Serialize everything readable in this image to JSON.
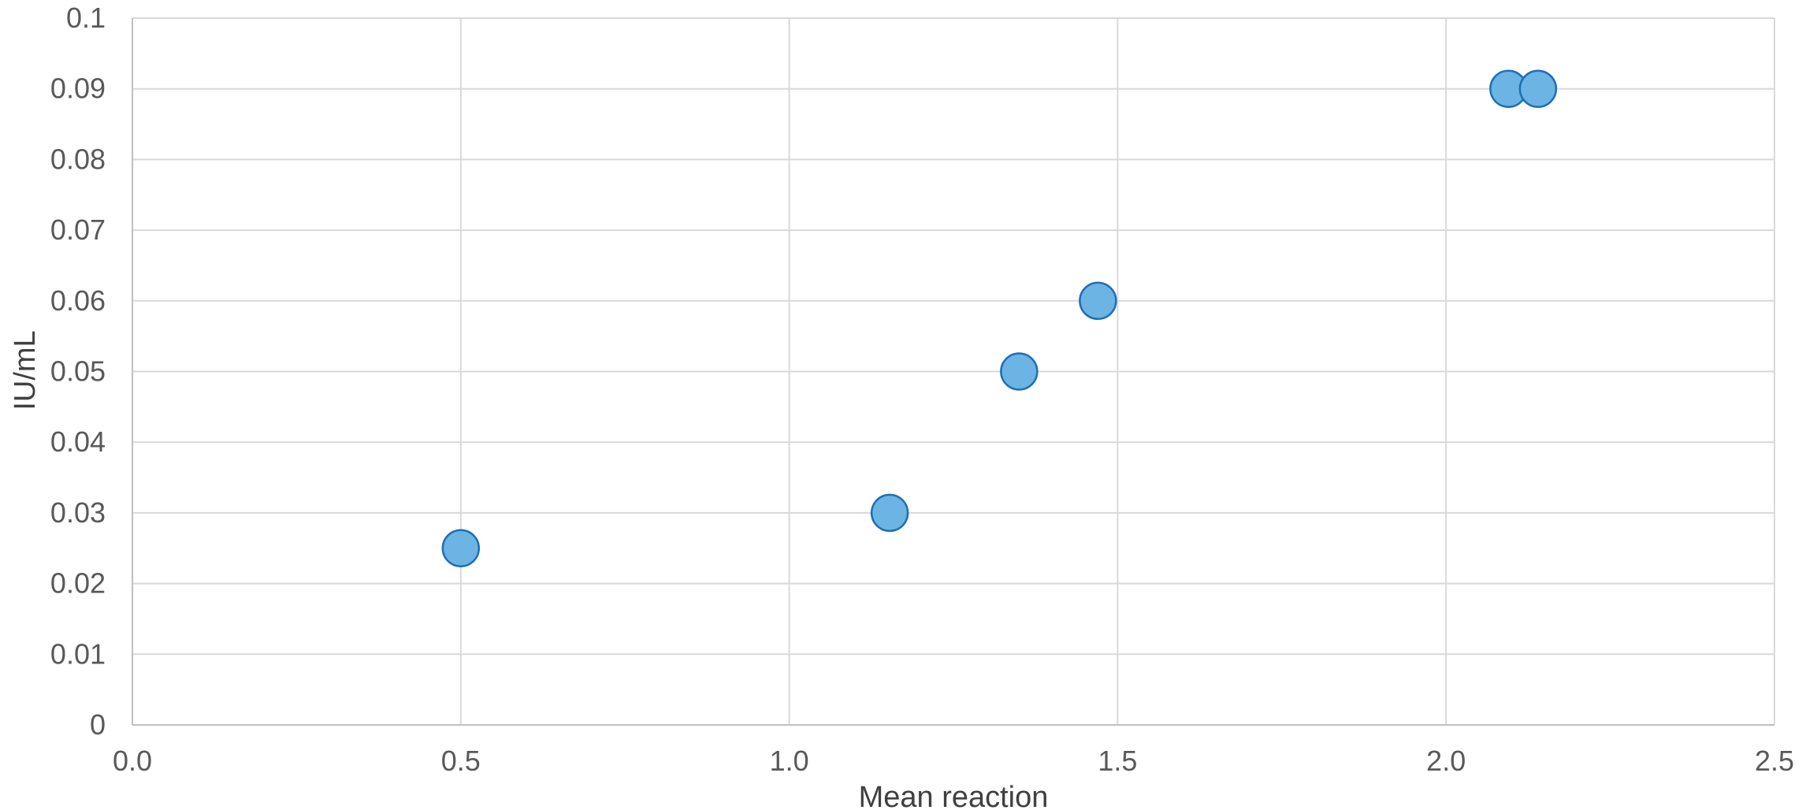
{
  "chart_data": {
    "type": "scatter",
    "title": "",
    "xlabel": "Mean reaction",
    "ylabel": "IU/mL",
    "xlim": [
      0,
      2.5
    ],
    "ylim": [
      0,
      0.1
    ],
    "x_ticks": [
      "0.0",
      "0.5",
      "1.0",
      "1.5",
      "2.0",
      "2.5"
    ],
    "y_ticks": [
      "0",
      "0.01",
      "0.02",
      "0.03",
      "0.04",
      "0.05",
      "0.06",
      "0.07",
      "0.08",
      "0.09",
      "0.1"
    ],
    "grid": true,
    "legend": "none",
    "series": [
      {
        "x": [
          0.5,
          1.153,
          1.35,
          1.47,
          2.095,
          2.14
        ],
        "y": [
          0.025,
          0.03,
          0.05,
          0.06,
          0.09,
          0.09
        ]
      }
    ],
    "colors": {
      "marker_fill": "#6cb4e4",
      "marker_stroke": "#1f6fb5",
      "grid": "#d9d9d9",
      "tick_text": "#595959",
      "axis_title_text": "#404040"
    }
  }
}
